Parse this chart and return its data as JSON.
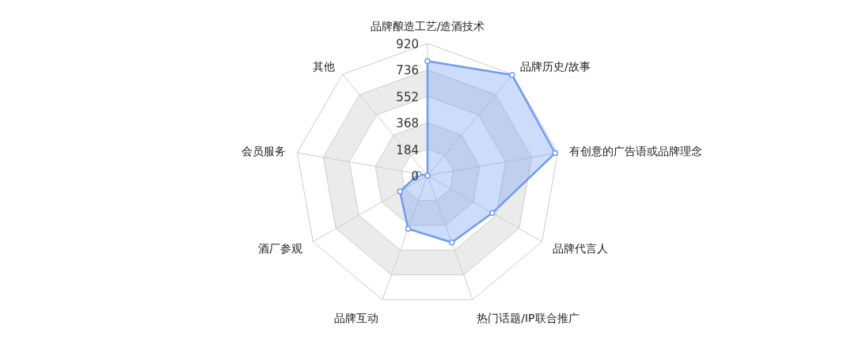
{
  "chart_data": {
    "type": "radar",
    "categories": [
      "品牌酿造工艺/造酒技术",
      "品牌历史/故事",
      "有创意的广告语或品牌理念",
      "品牌代言人",
      "热门话题/IP联合推广",
      "品牌互动",
      "酒厂参观",
      "会员服务",
      "其他"
    ],
    "series": [
      {
        "color": "#6f9cf0",
        "values": [
          797,
          915,
          902,
          521,
          495,
          394,
          221,
          63,
          0
        ]
      }
    ],
    "ylim": [
      0,
      920
    ],
    "yticks": [
      0,
      184,
      368,
      552,
      736,
      920
    ],
    "marker": "circle"
  }
}
